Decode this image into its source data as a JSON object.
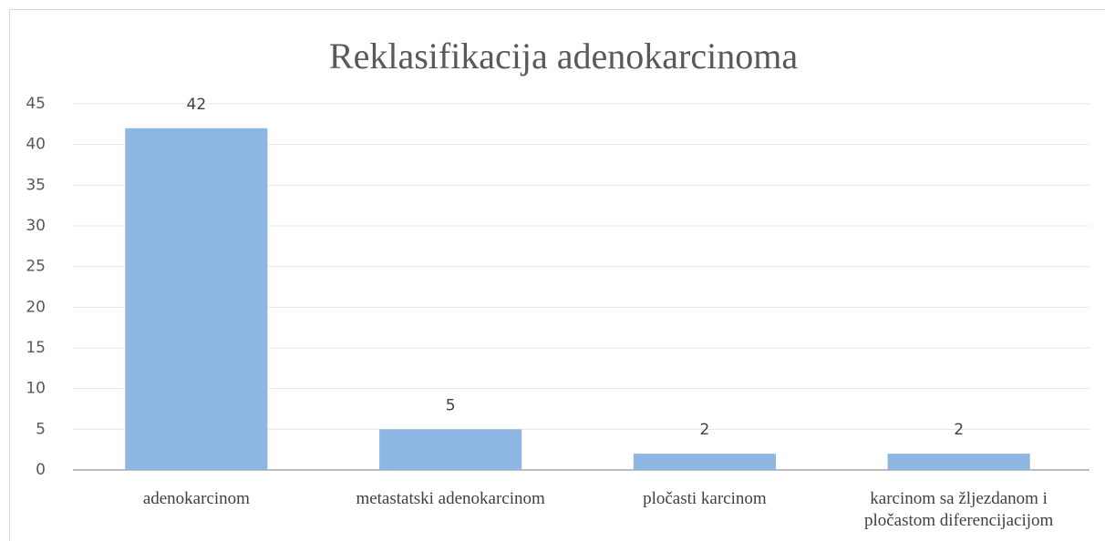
{
  "chart_data": {
    "type": "bar",
    "title": "Reklasifikacija adenokarcinoma",
    "categories": [
      "adenokarcinom",
      "metastatski adenokarcinom",
      "pločasti karcinom",
      "karcinom sa žljezdanom i pločastom diferencijacijom"
    ],
    "values": [
      42,
      5,
      2,
      2
    ],
    "color": "#8db6e2",
    "ylim": [
      0,
      45
    ],
    "yticks": [
      0,
      5,
      10,
      15,
      20,
      25,
      30,
      35,
      40,
      45
    ],
    "grid": true
  }
}
